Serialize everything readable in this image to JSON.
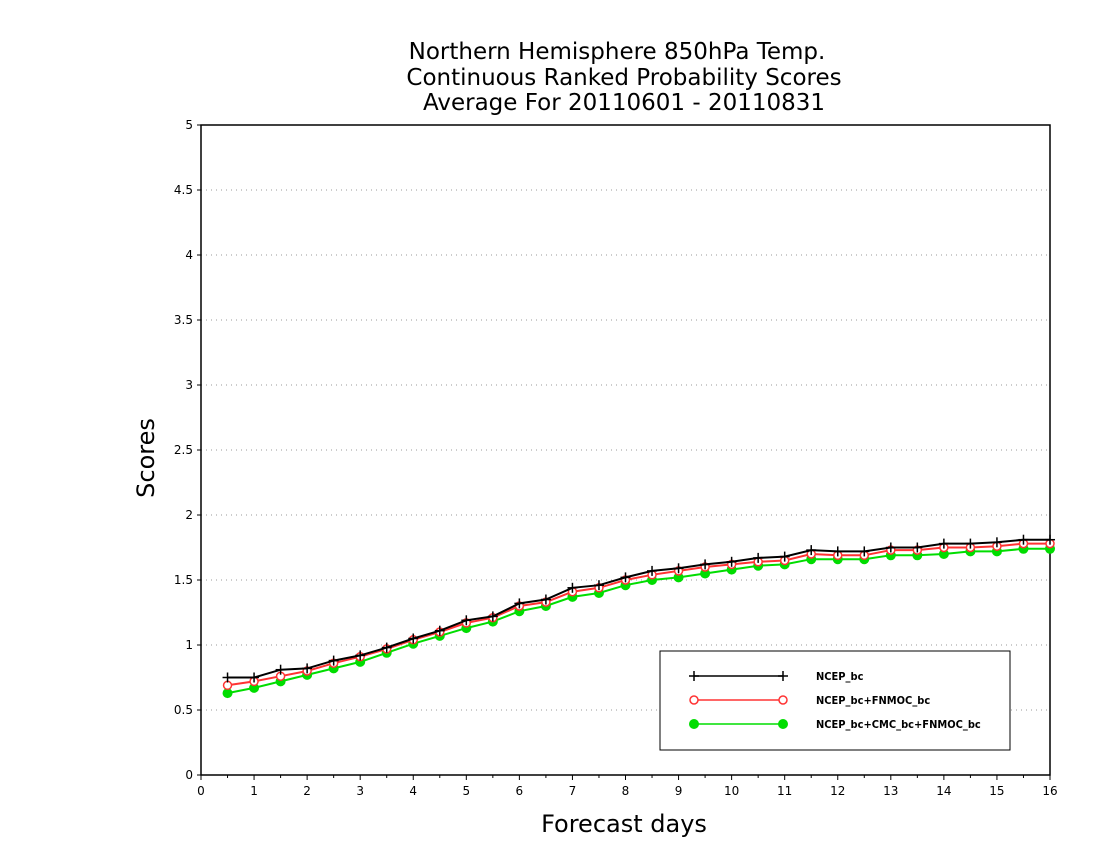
{
  "chart_data": {
    "type": "line",
    "title": [
      "Northern Hemisphere 850hPa Temp.",
      "Continuous Ranked Probability Scores",
      "Average For 20110601 - 20110831"
    ],
    "xlabel": "Forecast days",
    "ylabel": "Scores",
    "xlim": [
      0,
      16
    ],
    "ylim": [
      0,
      5
    ],
    "x_ticks": [
      "0",
      "1",
      "2",
      "3",
      "4",
      "5",
      "6",
      "7",
      "8",
      "9",
      "10",
      "11",
      "12",
      "13",
      "14",
      "15",
      "16"
    ],
    "y_ticks": [
      "0",
      "0.5",
      "1",
      "1.5",
      "2",
      "2.5",
      "3",
      "3.5",
      "4",
      "4.5",
      "5"
    ],
    "grid": true,
    "legend_position": "bottom-right",
    "x": [
      0.5,
      1,
      1.5,
      2,
      2.5,
      3,
      3.5,
      4,
      4.5,
      5,
      5.5,
      6,
      6.5,
      7,
      7.5,
      8,
      8.5,
      9,
      9.5,
      10,
      10.5,
      11,
      11.5,
      12,
      12.5,
      13,
      13.5,
      14,
      14.5,
      15,
      15.5,
      16
    ],
    "series": [
      {
        "name": "NCEP_bc",
        "color": "#000000",
        "marker": "plus",
        "values": [
          0.75,
          0.75,
          0.81,
          0.82,
          0.88,
          0.92,
          0.98,
          1.05,
          1.11,
          1.19,
          1.22,
          1.32,
          1.35,
          1.44,
          1.46,
          1.52,
          1.57,
          1.59,
          1.62,
          1.64,
          1.67,
          1.68,
          1.73,
          1.72,
          1.72,
          1.75,
          1.75,
          1.78,
          1.78,
          1.79,
          1.81,
          1.81
        ]
      },
      {
        "name": "NCEP_bc+FNMOC_bc",
        "color": "#ff3333",
        "marker": "open-circle",
        "values": [
          0.69,
          0.72,
          0.76,
          0.8,
          0.86,
          0.91,
          0.97,
          1.04,
          1.1,
          1.17,
          1.21,
          1.3,
          1.33,
          1.41,
          1.44,
          1.5,
          1.54,
          1.57,
          1.6,
          1.62,
          1.64,
          1.65,
          1.7,
          1.69,
          1.69,
          1.73,
          1.73,
          1.75,
          1.75,
          1.76,
          1.78,
          1.78
        ]
      },
      {
        "name": "NCEP_bc+CMC_bc+FNMOC_bc",
        "color": "#00dd00",
        "marker": "filled-circle",
        "values": [
          0.63,
          0.67,
          0.72,
          0.77,
          0.82,
          0.87,
          0.94,
          1.01,
          1.07,
          1.13,
          1.18,
          1.26,
          1.3,
          1.37,
          1.4,
          1.46,
          1.5,
          1.52,
          1.55,
          1.58,
          1.61,
          1.62,
          1.66,
          1.66,
          1.66,
          1.69,
          1.69,
          1.7,
          1.72,
          1.72,
          1.74,
          1.74
        ]
      }
    ]
  }
}
